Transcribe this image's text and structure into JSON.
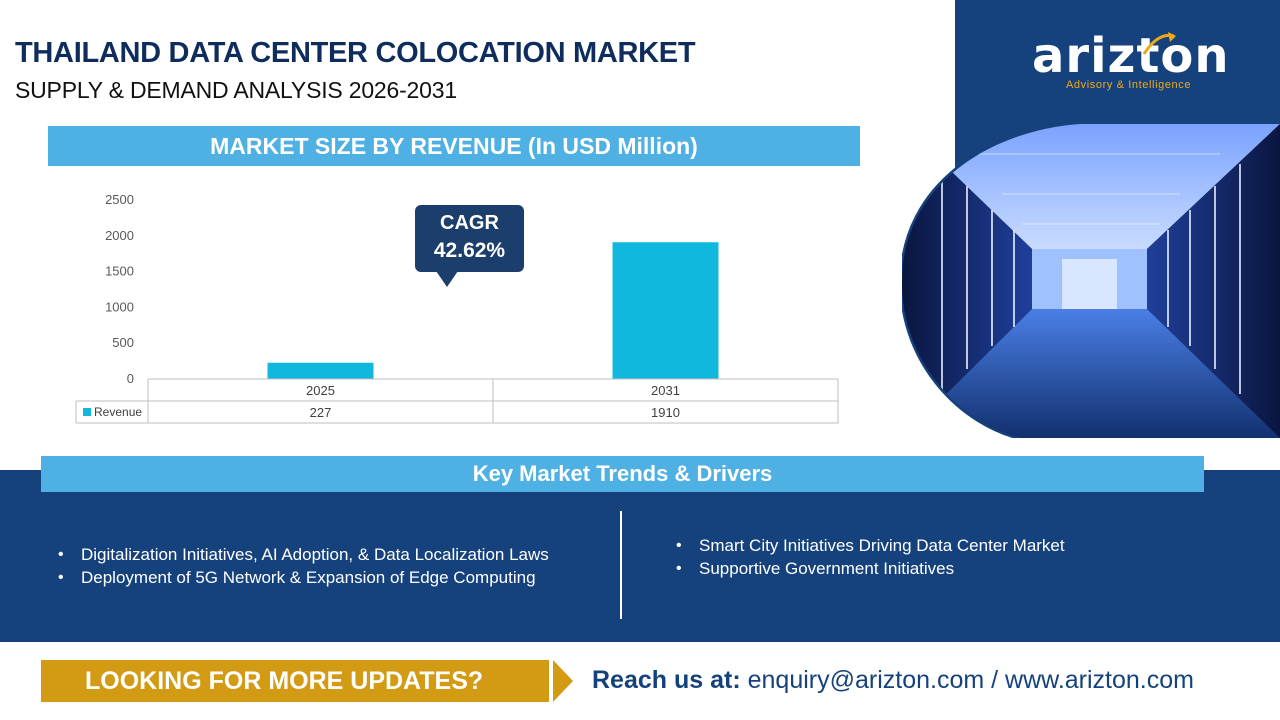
{
  "header": {
    "title": "THAILAND DATA CENTER COLOCATION MARKET",
    "subtitle": "SUPPLY & DEMAND ANALYSIS 2026-2031"
  },
  "logo": {
    "name": "arizton",
    "tagline": "Advisory & Intelligence"
  },
  "chart_section": {
    "banner": "MARKET SIZE BY REVENUE (In USD Million)",
    "cagr_label": "CAGR",
    "cagr_value": "42.62%"
  },
  "chart_data": {
    "type": "bar",
    "title": "MARKET SIZE BY REVENUE (In USD Million)",
    "categories": [
      "2025",
      "2031"
    ],
    "series": [
      {
        "name": "Revenue",
        "values": [
          227,
          1910
        ],
        "color": "#10b8de"
      }
    ],
    "ylim": [
      0,
      2500
    ],
    "yticks": [
      0,
      500,
      1000,
      1500,
      2000,
      2500
    ],
    "grid": false,
    "data_table": true
  },
  "trends": {
    "banner": "Key Market Trends & Drivers",
    "left": [
      "Digitalization Initiatives, AI Adoption, & Data Localization Laws",
      "Deployment of 5G Network & Expansion of Edge Computing"
    ],
    "right": [
      "Smart City Initiatives Driving Data Center Market",
      "Supportive Government Initiatives"
    ]
  },
  "footer": {
    "cta": "LOOKING FOR MORE UPDATES?",
    "reach_label": "Reach us at:",
    "reach_contact": " enquiry@arizton.com / www.arizton.com"
  },
  "colors": {
    "navy": "#15427c",
    "banner_blue": "#4fb1e3",
    "bar": "#10b8de",
    "cta_gold": "#d39a14",
    "logo_accent": "#f0a81b"
  }
}
